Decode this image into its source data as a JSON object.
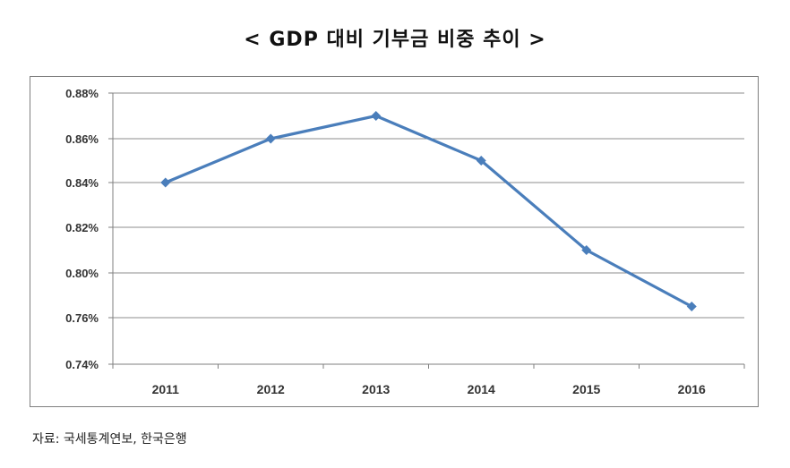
{
  "title": "< GDP 대비 기부금 비중 추이 >",
  "source": "자료: 국세통계연보, 한국은행",
  "colors": {
    "series": "#4a7ebb",
    "grid": "#8c8c8c",
    "axis": "#7f7f7f"
  },
  "chart_data": {
    "type": "line",
    "x": [
      "2011",
      "2012",
      "2013",
      "2014",
      "2015",
      "2016"
    ],
    "series": [
      {
        "values": [
          0.84,
          0.86,
          0.87,
          0.85,
          0.81,
          0.77
        ]
      }
    ],
    "y_ticks": [
      0.74,
      0.76,
      0.8,
      0.82,
      0.84,
      0.86,
      0.88
    ],
    "y_tick_labels": [
      "0.74%",
      "0.76%",
      "0.80%",
      "0.82%",
      "0.84%",
      "0.86%",
      "0.88%"
    ],
    "ylim": [
      0.74,
      0.88
    ],
    "grid": true,
    "legend": false,
    "marker": "diamond"
  }
}
